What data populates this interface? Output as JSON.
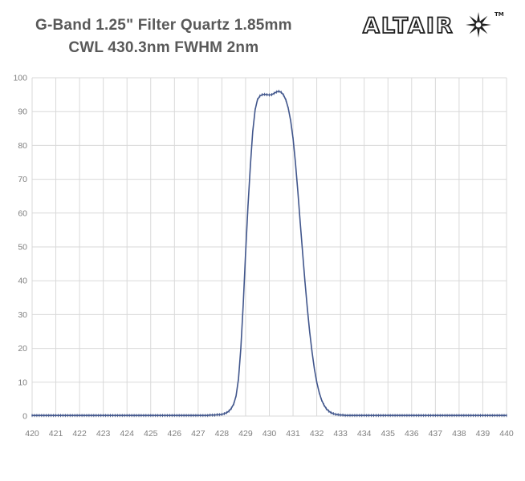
{
  "header": {
    "title_line1": "G-Band 1.25\" Filter Quartz 1.85mm",
    "title_line2": "CWL 430.3nm FWHM 2nm",
    "logo_text": "ALTAIR",
    "logo_tm": "TM"
  },
  "chart_data": {
    "type": "line",
    "title": "",
    "xlabel": "",
    "ylabel": "",
    "xlim": [
      420,
      440
    ],
    "ylim": [
      0,
      100
    ],
    "grid": true,
    "grid_color": "#d9d9d9",
    "axis_label_color": "#7f7f7f",
    "x_tick_labels": [
      "420",
      "421",
      "422",
      "423",
      "424",
      "425",
      "426",
      "427",
      "428",
      "429",
      "430",
      "431",
      "432",
      "433",
      "434",
      "435",
      "436",
      "437",
      "438",
      "439",
      "440"
    ],
    "y_tick_labels": [
      "0",
      "10",
      "20",
      "30",
      "40",
      "50",
      "60",
      "70",
      "80",
      "90",
      "100"
    ],
    "x_start": 420.0,
    "x_step": 0.1,
    "series": [
      {
        "name": "transmission-percent",
        "color": "#41568c",
        "marker": "vertical-tick",
        "values": [
          0.2,
          0.2,
          0.2,
          0.2,
          0.2,
          0.2,
          0.2,
          0.2,
          0.2,
          0.2,
          0.2,
          0.2,
          0.2,
          0.2,
          0.2,
          0.2,
          0.2,
          0.2,
          0.2,
          0.2,
          0.2,
          0.2,
          0.2,
          0.2,
          0.2,
          0.2,
          0.2,
          0.2,
          0.2,
          0.2,
          0.2,
          0.2,
          0.2,
          0.2,
          0.2,
          0.2,
          0.2,
          0.2,
          0.2,
          0.2,
          0.2,
          0.2,
          0.2,
          0.2,
          0.2,
          0.2,
          0.2,
          0.2,
          0.2,
          0.2,
          0.2,
          0.2,
          0.2,
          0.2,
          0.2,
          0.2,
          0.2,
          0.2,
          0.2,
          0.2,
          0.2,
          0.2,
          0.2,
          0.2,
          0.2,
          0.2,
          0.2,
          0.2,
          0.2,
          0.2,
          0.2,
          0.2,
          0.2,
          0.2,
          0.2,
          0.3,
          0.3,
          0.3,
          0.4,
          0.4,
          0.5,
          0.7,
          1.0,
          1.5,
          2.3,
          3.6,
          6.0,
          11.0,
          20.0,
          33.0,
          48.0,
          62.0,
          74.0,
          84.0,
          90.5,
          93.5,
          94.6,
          95.0,
          95.1,
          95.0,
          94.9,
          95.0,
          95.4,
          95.8,
          96.0,
          95.7,
          94.9,
          93.4,
          91.0,
          87.3,
          82.0,
          75.0,
          66.5,
          57.5,
          48.5,
          40.0,
          32.0,
          25.0,
          19.0,
          14.0,
          10.0,
          7.0,
          4.8,
          3.3,
          2.2,
          1.5,
          1.0,
          0.7,
          0.5,
          0.4,
          0.3,
          0.3,
          0.2,
          0.2,
          0.2,
          0.2,
          0.2,
          0.2,
          0.2,
          0.2,
          0.2,
          0.2,
          0.2,
          0.2,
          0.2,
          0.2,
          0.2,
          0.2,
          0.2,
          0.2,
          0.2,
          0.2,
          0.2,
          0.2,
          0.2,
          0.2,
          0.2,
          0.2,
          0.2,
          0.2,
          0.2,
          0.2,
          0.2,
          0.2,
          0.2,
          0.2,
          0.2,
          0.2,
          0.2,
          0.2,
          0.2,
          0.2,
          0.2,
          0.2,
          0.2,
          0.2,
          0.2,
          0.2,
          0.2,
          0.2,
          0.2,
          0.2,
          0.2,
          0.2,
          0.2,
          0.2,
          0.2,
          0.2,
          0.2,
          0.2,
          0.2,
          0.2,
          0.2,
          0.2,
          0.2,
          0.2,
          0.2,
          0.2,
          0.2,
          0.2,
          0.2
        ]
      }
    ]
  }
}
